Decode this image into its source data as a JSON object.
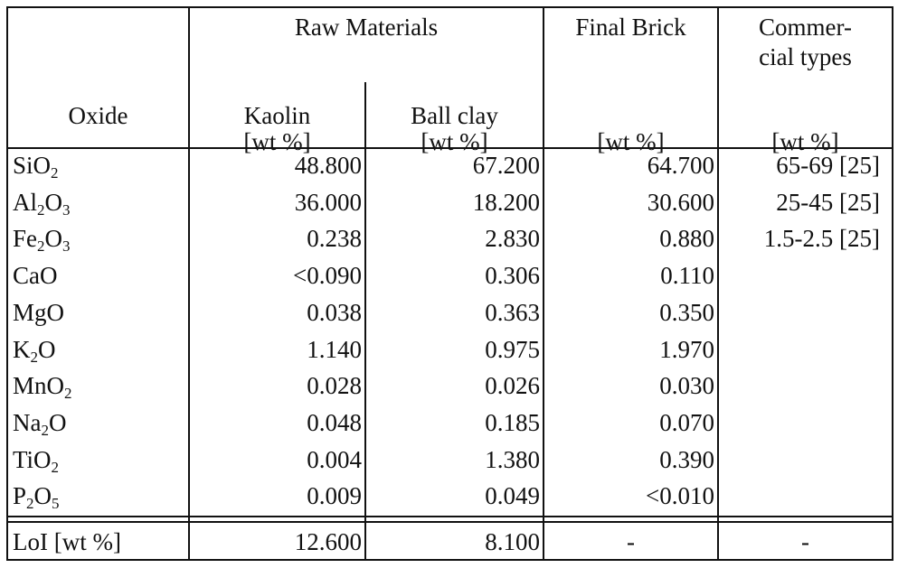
{
  "table": {
    "header": {
      "oxide": "Oxide",
      "raw_materials": "Raw Materials",
      "kaolin": "Kaolin",
      "ball_clay": "Ball clay",
      "final_brick": "Final Brick",
      "commercial_line1": "Commer-",
      "commercial_line2": "cial types",
      "unit": "[wt %]"
    },
    "rows": [
      {
        "base": "SiO",
        "sub": "2",
        "tail": "",
        "kaolin": "48.800",
        "ball_clay": "67.200",
        "final_brick": "64.700",
        "commercial": "65-69 [25]"
      },
      {
        "base": "Al",
        "sub": "2",
        "tail": "O",
        "sub2": "3",
        "kaolin": "36.000",
        "ball_clay": "18.200",
        "final_brick": "30.600",
        "commercial": "25-45 [25]"
      },
      {
        "base": "Fe",
        "sub": "2",
        "tail": "O",
        "sub2": "3",
        "kaolin": "0.238",
        "ball_clay": "2.830",
        "final_brick": "0.880",
        "commercial": "1.5-2.5 [25]"
      },
      {
        "base": "CaO",
        "sub": "",
        "tail": "",
        "kaolin": "<0.090",
        "ball_clay": "0.306",
        "final_brick": "0.110",
        "commercial": ""
      },
      {
        "base": "MgO",
        "sub": "",
        "tail": "",
        "kaolin": "0.038",
        "ball_clay": "0.363",
        "final_brick": "0.350",
        "commercial": ""
      },
      {
        "base": "K",
        "sub": "2",
        "tail": "O",
        "kaolin": "1.140",
        "ball_clay": "0.975",
        "final_brick": "1.970",
        "commercial": ""
      },
      {
        "base": "MnO",
        "sub": "2",
        "tail": "",
        "kaolin": "0.028",
        "ball_clay": "0.026",
        "final_brick": "0.030",
        "commercial": ""
      },
      {
        "base": "Na",
        "sub": "2",
        "tail": "O",
        "kaolin": "0.048",
        "ball_clay": "0.185",
        "final_brick": "0.070",
        "commercial": ""
      },
      {
        "base": "TiO",
        "sub": "2",
        "tail": "",
        "kaolin": "0.004",
        "ball_clay": "1.380",
        "final_brick": "0.390",
        "commercial": ""
      },
      {
        "base": "P",
        "sub": "2",
        "tail": "O",
        "sub2": "5",
        "kaolin": "0.009",
        "ball_clay": "0.049",
        "final_brick": "<0.010",
        "commercial": ""
      }
    ],
    "loi": {
      "label": "LoI [wt %]",
      "kaolin": "12.600",
      "ball_clay": "8.100",
      "final_brick": "-",
      "commercial": "-"
    }
  }
}
